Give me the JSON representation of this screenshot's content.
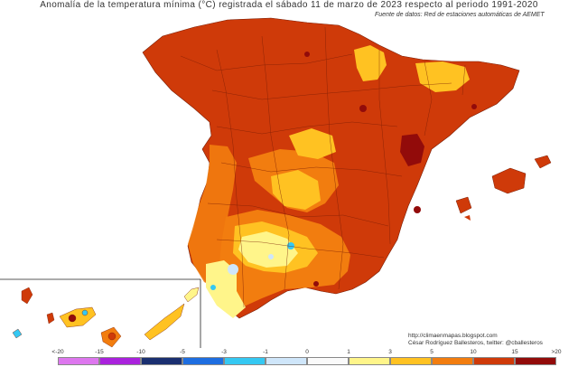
{
  "title": "Anomalía de la temperatura mínima (°C) registrada el sábado 11 de marzo de 2023 respecto al periodo 1991-2020",
  "subtitle": "Fuente de datos: Red de estaciones automáticas de AEMET",
  "credits": {
    "url": "http://climaenmapas.blogspot.com",
    "author": "César Rodríguez Ballesteros, twitter: @cballesteros"
  },
  "legend": {
    "labels": [
      "<-20",
      "-15",
      "-10",
      "-5",
      "-3",
      "-1",
      "0",
      "1",
      "3",
      "5",
      "10",
      "15",
      ">20"
    ],
    "colors": [
      "#dd77ee",
      "#aa22dd",
      "#1a2f70",
      "#1e6ee0",
      "#35c8f2",
      "#cfe6fa",
      "#fafafa",
      "#fff58a",
      "#ffc222",
      "#f27d0f",
      "#cf3a09",
      "#920b0a",
      "#6b3a14"
    ]
  },
  "colors": {
    "mainland": "#cf3a09",
    "moderate": "#f27d0f",
    "mild": "#ffc222",
    "slight": "#fff58a",
    "cool": "#cfe6fa",
    "cold": "#35c8f2",
    "hot": "#920b0a",
    "border": "#7a1d05"
  }
}
